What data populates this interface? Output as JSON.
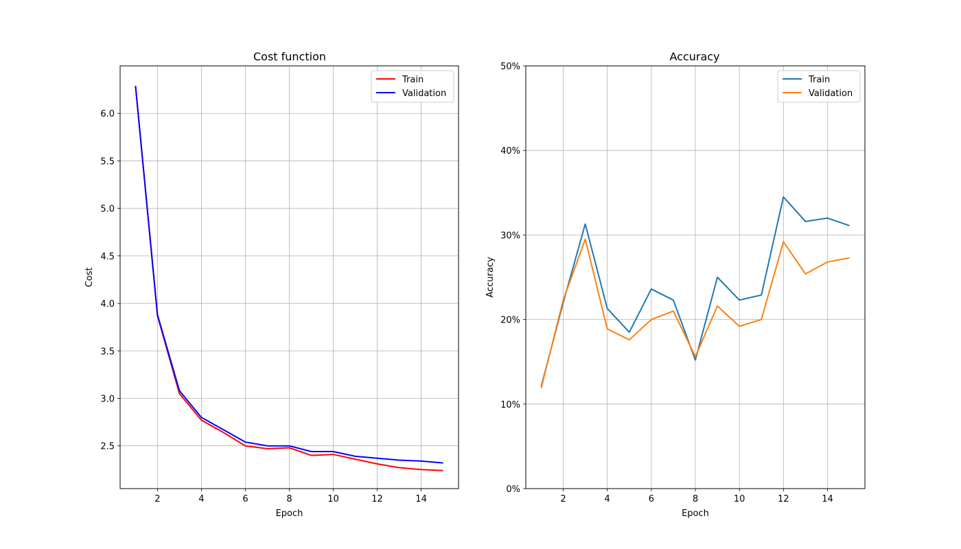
{
  "chart_data": [
    {
      "type": "line",
      "title": "Cost function",
      "xlabel": "Epoch",
      "ylabel": "Cost",
      "xlim": [
        0.3,
        15.7
      ],
      "ylim": [
        2.05,
        6.5
      ],
      "xticks": [
        2,
        4,
        6,
        8,
        10,
        12,
        14
      ],
      "xtick_labels": [
        "2",
        "4",
        "6",
        "8",
        "10",
        "12",
        "14"
      ],
      "yticks": [
        2.5,
        3.0,
        3.5,
        4.0,
        4.5,
        5.0,
        5.5,
        6.0
      ],
      "ytick_labels": [
        "2.5",
        "3.0",
        "3.5",
        "4.0",
        "4.5",
        "5.0",
        "5.5",
        "6.0"
      ],
      "grid": true,
      "legend": "top-right",
      "x": [
        1,
        2,
        3,
        4,
        5,
        6,
        7,
        8,
        9,
        10,
        11,
        12,
        13,
        14,
        15
      ],
      "series": [
        {
          "name": "Train",
          "color": "#ff0000",
          "values": [
            6.29,
            3.87,
            3.05,
            2.77,
            2.64,
            2.5,
            2.47,
            2.48,
            2.4,
            2.41,
            2.36,
            2.31,
            2.27,
            2.25,
            2.24
          ]
        },
        {
          "name": "Validation",
          "color": "#0000ff",
          "values": [
            6.29,
            3.88,
            3.08,
            2.8,
            2.67,
            2.54,
            2.5,
            2.5,
            2.44,
            2.44,
            2.39,
            2.37,
            2.35,
            2.34,
            2.32
          ]
        }
      ]
    },
    {
      "type": "line",
      "title": "Accuracy",
      "xlabel": "Epoch",
      "ylabel": "Accuracy",
      "xlim": [
        0.3,
        15.7
      ],
      "ylim": [
        0,
        50
      ],
      "xticks": [
        2,
        4,
        6,
        8,
        10,
        12,
        14
      ],
      "xtick_labels": [
        "2",
        "4",
        "6",
        "8",
        "10",
        "12",
        "14"
      ],
      "yticks": [
        0,
        10,
        20,
        30,
        40,
        50
      ],
      "ytick_labels": [
        "0%",
        "10%",
        "20%",
        "30%",
        "40%",
        "50%"
      ],
      "grid": true,
      "legend": "top-right",
      "x": [
        1,
        2,
        3,
        4,
        5,
        6,
        7,
        8,
        9,
        10,
        11,
        12,
        13,
        14,
        15
      ],
      "series": [
        {
          "name": "Train",
          "color": "#1f77b4",
          "values": [
            12.1,
            22.0,
            31.3,
            21.3,
            18.5,
            23.6,
            22.3,
            15.2,
            25.0,
            22.3,
            22.9,
            34.5,
            31.6,
            32.0,
            31.1
          ]
        },
        {
          "name": "Validation",
          "color": "#ff7f0e",
          "values": [
            11.9,
            22.3,
            29.5,
            18.9,
            17.6,
            20.0,
            21.0,
            15.6,
            21.6,
            19.2,
            20.0,
            29.2,
            25.4,
            26.8,
            27.3
          ]
        }
      ]
    }
  ]
}
